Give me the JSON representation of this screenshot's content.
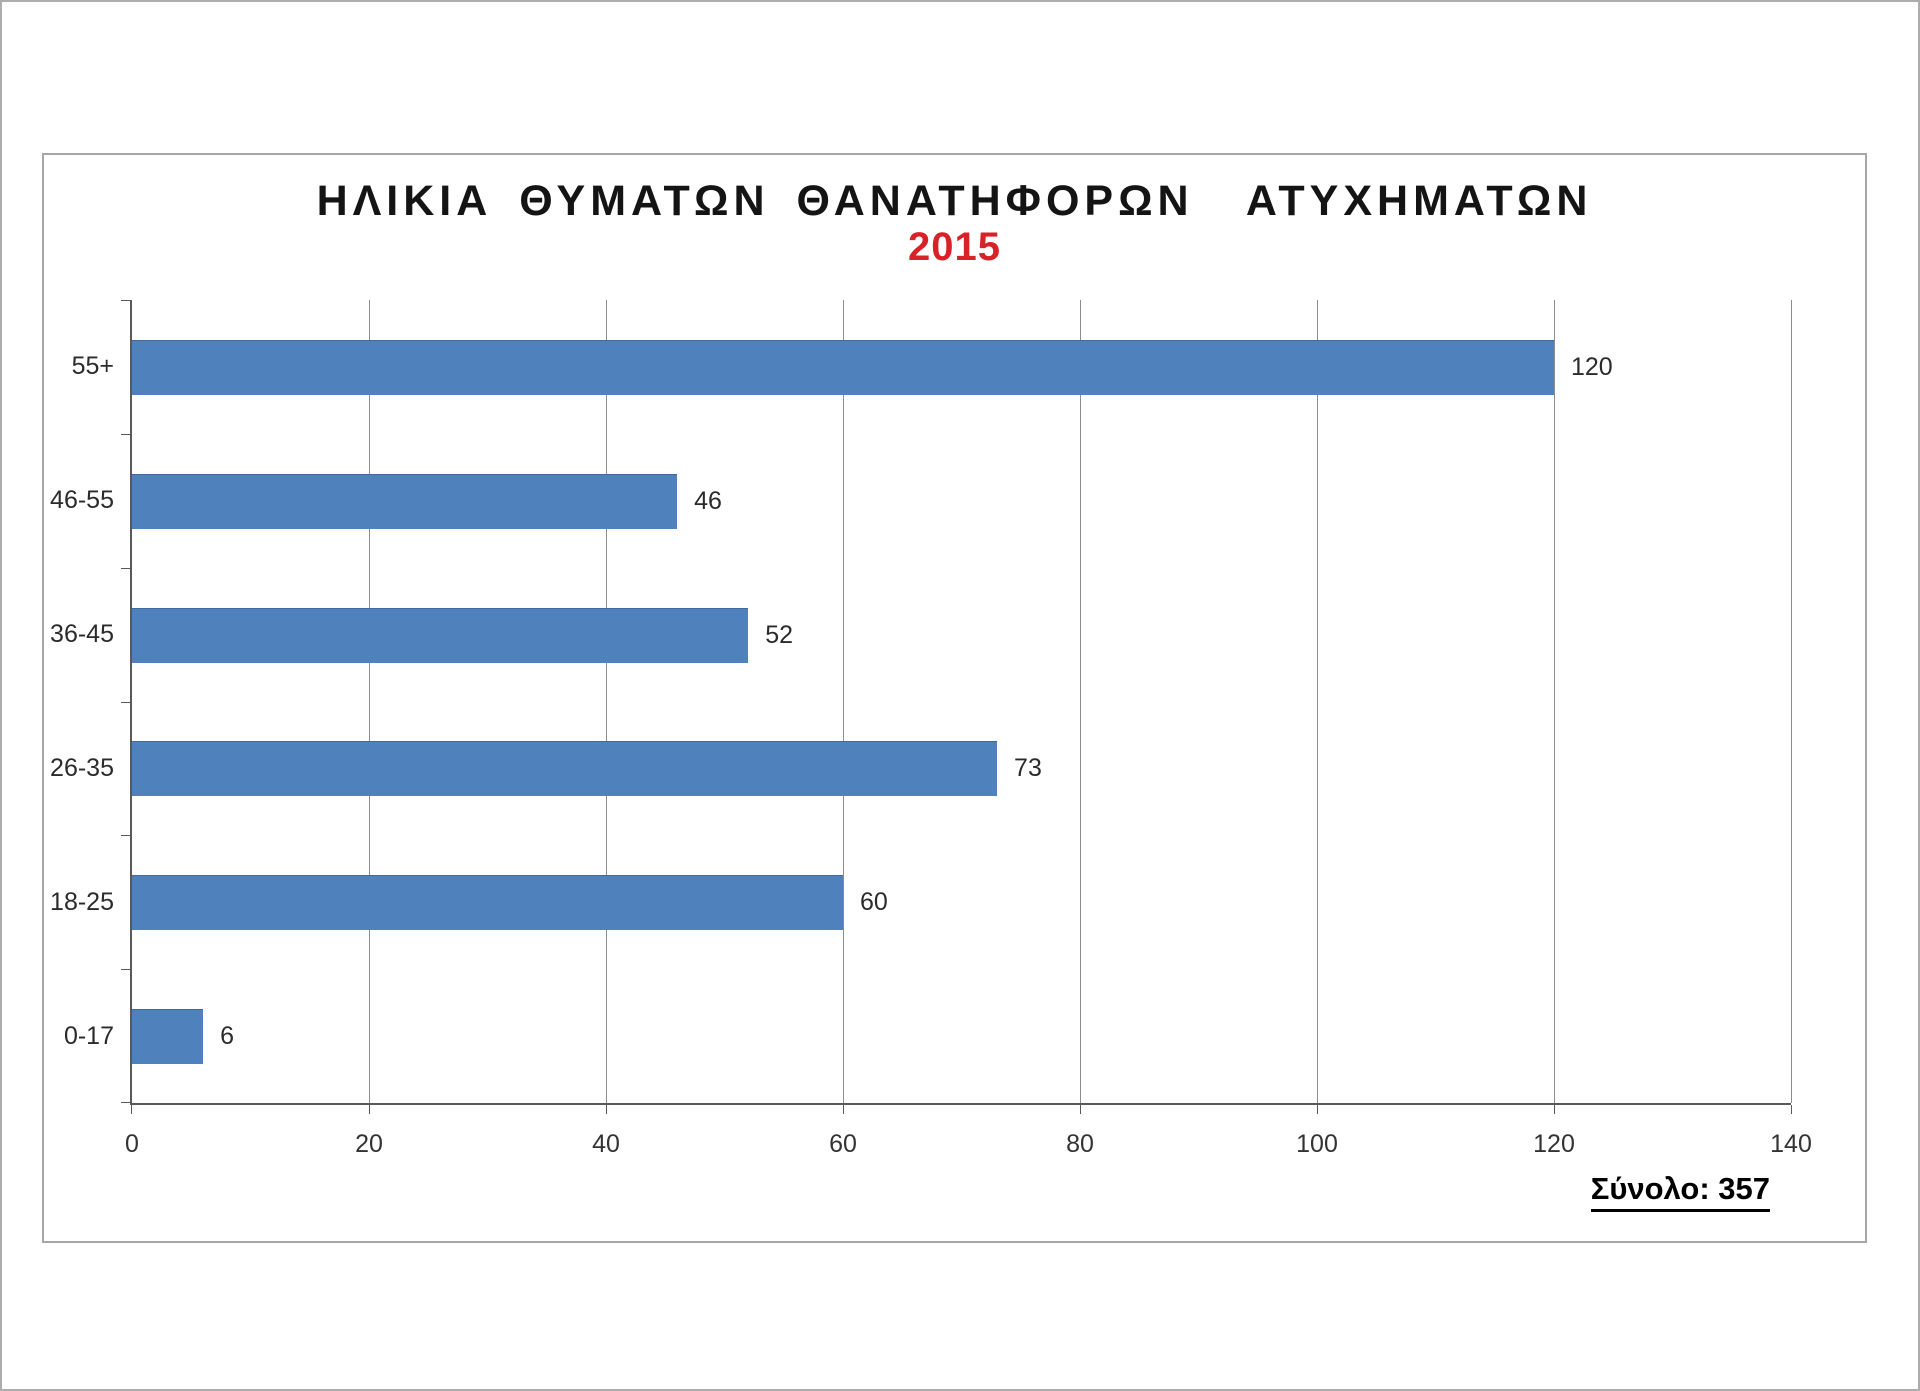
{
  "chart_data": {
    "type": "bar",
    "orientation": "horizontal",
    "title": "ΗΛΙΚΙΑ ΘΥΜΑΤΩΝ ΘΑΝΑΤΗΦΟΡΩΝ  ΑΤΥΧΗΜΑΤΩΝ",
    "subtitle": "2015",
    "subtitle_color": "#d92128",
    "categories": [
      "55+",
      "46-55",
      "36-45",
      "26-35",
      "18-25",
      "0-17"
    ],
    "values": [
      120,
      46,
      52,
      73,
      60,
      6
    ],
    "xlabel": "",
    "ylabel": "",
    "xlim": [
      0,
      140
    ],
    "xticks": [
      0,
      20,
      40,
      60,
      80,
      100,
      120,
      140
    ],
    "grid": true,
    "legend": false,
    "bar_color": "#4f81bd",
    "gridline_color": "#8d8d8d",
    "axis_color": "#595959",
    "total_label": "Σύνολο: 357"
  }
}
